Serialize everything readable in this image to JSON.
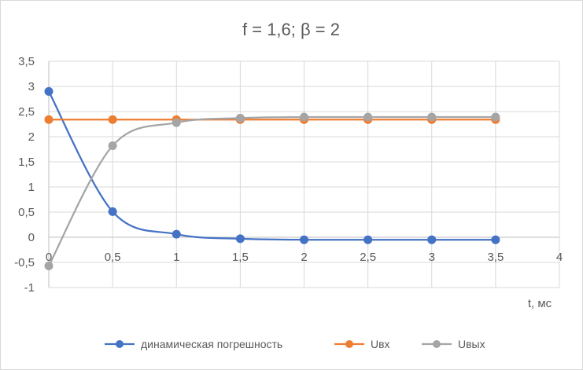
{
  "chart_data": {
    "type": "line",
    "title": "f = 1,6; β = 2",
    "xlabel": "t, мс",
    "ylabel": "",
    "xlim": [
      0,
      4
    ],
    "ylim": [
      -1,
      3.5
    ],
    "x_ticks": [
      0,
      0.5,
      1,
      1.5,
      2,
      2.5,
      3,
      3.5,
      4
    ],
    "x_tick_labels": [
      "0",
      "0,5",
      "1",
      "1,5",
      "2",
      "2,5",
      "3",
      "3,5",
      "4"
    ],
    "y_ticks": [
      -1,
      -0.5,
      0,
      0.5,
      1,
      1.5,
      2,
      2.5,
      3,
      3.5
    ],
    "y_tick_labels": [
      "-1",
      "-0,5",
      "0",
      "0,5",
      "1",
      "1,5",
      "2",
      "2,5",
      "3",
      "3,5"
    ],
    "grid": true,
    "legend_position": "bottom",
    "x": [
      0,
      0.5,
      1,
      1.5,
      2,
      2.5,
      3,
      3.5
    ],
    "series": [
      {
        "name": "динамическая погрешность",
        "color": "#4472c4",
        "values": [
          2.9,
          0.51,
          0.06,
          -0.03,
          -0.05,
          -0.05,
          -0.05,
          -0.05
        ]
      },
      {
        "name": "Uвх",
        "color": "#ed7d31",
        "values": [
          2.34,
          2.34,
          2.34,
          2.34,
          2.34,
          2.34,
          2.34,
          2.34
        ]
      },
      {
        "name": "Uвых",
        "color": "#a5a5a5",
        "values": [
          -0.57,
          1.82,
          2.28,
          2.37,
          2.39,
          2.39,
          2.39,
          2.39
        ]
      }
    ]
  }
}
